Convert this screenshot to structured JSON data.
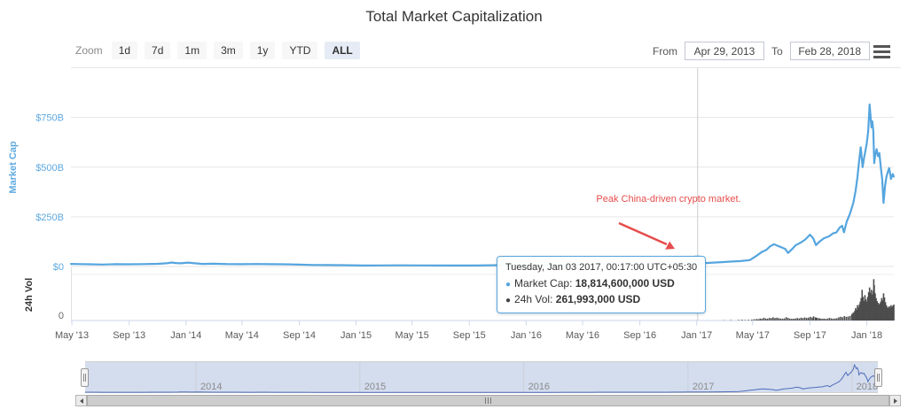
{
  "header": {
    "title": "Total Market Capitalization"
  },
  "toolbar": {
    "zoom_label": "Zoom",
    "zoom_buttons": [
      {
        "label": "1d",
        "selected": false
      },
      {
        "label": "7d",
        "selected": false
      },
      {
        "label": "1m",
        "selected": false
      },
      {
        "label": "3m",
        "selected": false
      },
      {
        "label": "1y",
        "selected": false
      },
      {
        "label": "YTD",
        "selected": false
      },
      {
        "label": "ALL",
        "selected": true
      }
    ],
    "from_label": "From",
    "from_value": "Apr 29, 2013",
    "to_label": "To",
    "to_value": "Feb 28, 2018",
    "menu_icon": "hamburger-icon"
  },
  "axes": {
    "market_cap_title": "Market Cap",
    "volume_title": "24h Vol"
  },
  "tooltip": {
    "date": "Tuesday, Jan 03 2017, 00:17:00 UTC+05:30",
    "market_cap_label": "Market Cap:",
    "market_cap_value": "18,814,600,000 USD",
    "volume_label": "24h Vol:",
    "volume_value": "261,993,000 USD"
  },
  "annotation": {
    "text": "Peak China-driven crypto market."
  },
  "colors": {
    "market_cap_line": "#55a5df",
    "volume_bar": "#4d4d4d",
    "annotation_red": "#e74c4c",
    "selected_button_bg": "#e6ebf5",
    "navigator_line": "#4f6db8",
    "axis_label_blue": "#5ea9e0",
    "tooltip_vol_bullet": "#434348"
  },
  "chart_data": {
    "type": "line",
    "title": "Total Market Capitalization",
    "x_range": [
      "2013-04-29",
      "2018-02-28"
    ],
    "x_ticks": [
      {
        "date": "2013-05-01",
        "label": "May '13"
      },
      {
        "date": "2013-09-01",
        "label": "Sep '13"
      },
      {
        "date": "2014-01-01",
        "label": "Jan '14"
      },
      {
        "date": "2014-05-01",
        "label": "May '14"
      },
      {
        "date": "2014-09-01",
        "label": "Sep '14"
      },
      {
        "date": "2015-01-01",
        "label": "Jan '15"
      },
      {
        "date": "2015-05-01",
        "label": "May '15"
      },
      {
        "date": "2015-09-01",
        "label": "Sep '15"
      },
      {
        "date": "2016-01-01",
        "label": "Jan '16"
      },
      {
        "date": "2016-05-01",
        "label": "May '16"
      },
      {
        "date": "2016-09-01",
        "label": "Sep '16"
      },
      {
        "date": "2017-01-01",
        "label": "Jan '17"
      },
      {
        "date": "2017-05-01",
        "label": "May '17"
      },
      {
        "date": "2017-09-01",
        "label": "Sep '17"
      },
      {
        "date": "2018-01-01",
        "label": "Jan '18"
      }
    ],
    "market_cap": {
      "name": "Market Cap",
      "unit": "USD billions",
      "ylim": [
        0,
        1000
      ],
      "gridline_values": [
        0,
        250,
        500,
        750,
        1000
      ],
      "ticks": [
        {
          "value": 0,
          "label": "$0"
        },
        {
          "value": 250,
          "label": "$250B"
        },
        {
          "value": 500,
          "label": "$500B"
        },
        {
          "value": 750,
          "label": "$750B"
        }
      ],
      "points": [
        [
          "2013-04-29",
          13
        ],
        [
          "2013-05-20",
          12
        ],
        [
          "2013-06-10",
          11
        ],
        [
          "2013-07-05",
          10
        ],
        [
          "2013-08-01",
          11.5
        ],
        [
          "2013-09-01",
          11
        ],
        [
          "2013-10-01",
          12
        ],
        [
          "2013-11-01",
          13.5
        ],
        [
          "2013-11-20",
          16
        ],
        [
          "2013-12-01",
          20
        ],
        [
          "2013-12-10",
          17.5
        ],
        [
          "2013-12-20",
          16
        ],
        [
          "2014-01-06",
          19.5
        ],
        [
          "2014-01-20",
          16
        ],
        [
          "2014-02-05",
          13
        ],
        [
          "2014-03-01",
          14
        ],
        [
          "2014-04-01",
          12
        ],
        [
          "2014-05-01",
          11.5
        ],
        [
          "2014-06-01",
          12.5
        ],
        [
          "2014-07-01",
          11.5
        ],
        [
          "2014-08-01",
          11
        ],
        [
          "2014-09-01",
          9.5
        ],
        [
          "2014-10-01",
          7.5
        ],
        [
          "2014-11-01",
          7
        ],
        [
          "2014-12-01",
          6.5
        ],
        [
          "2015-01-15",
          4.8
        ],
        [
          "2015-02-15",
          5.5
        ],
        [
          "2015-04-01",
          5.8
        ],
        [
          "2015-06-01",
          5.3
        ],
        [
          "2015-08-01",
          5
        ],
        [
          "2015-09-15",
          4.7
        ],
        [
          "2015-11-05",
          6.8
        ],
        [
          "2015-12-15",
          7
        ],
        [
          "2016-01-15",
          7.2
        ],
        [
          "2016-03-01",
          8.5
        ],
        [
          "2016-04-15",
          9.2
        ],
        [
          "2016-05-30",
          10.5
        ],
        [
          "2016-06-18",
          14
        ],
        [
          "2016-07-15",
          12.8
        ],
        [
          "2016-08-15",
          12.2
        ],
        [
          "2016-09-15",
          12.6
        ],
        [
          "2016-10-15",
          13
        ],
        [
          "2016-11-15",
          13.8
        ],
        [
          "2016-12-15",
          15.5
        ],
        [
          "2017-01-03",
          18.8146
        ],
        [
          "2017-01-20",
          17.5
        ],
        [
          "2017-02-15",
          20.5
        ],
        [
          "2017-03-10",
          24
        ],
        [
          "2017-04-05",
          27
        ],
        [
          "2017-04-25",
          32
        ],
        [
          "2017-05-10",
          55
        ],
        [
          "2017-05-22",
          75
        ],
        [
          "2017-05-30",
          83
        ],
        [
          "2017-06-08",
          102
        ],
        [
          "2017-06-16",
          112
        ],
        [
          "2017-06-24",
          104
        ],
        [
          "2017-07-02",
          96
        ],
        [
          "2017-07-10",
          88
        ],
        [
          "2017-07-16",
          68
        ],
        [
          "2017-07-24",
          86
        ],
        [
          "2017-08-02",
          108
        ],
        [
          "2017-08-12",
          120
        ],
        [
          "2017-08-22",
          136
        ],
        [
          "2017-09-01",
          160
        ],
        [
          "2017-09-08",
          142
        ],
        [
          "2017-09-14",
          108
        ],
        [
          "2017-09-22",
          126
        ],
        [
          "2017-10-01",
          142
        ],
        [
          "2017-10-12",
          152
        ],
        [
          "2017-10-20",
          166
        ],
        [
          "2017-10-28",
          172
        ],
        [
          "2017-11-04",
          196
        ],
        [
          "2017-11-09",
          205
        ],
        [
          "2017-11-13",
          172
        ],
        [
          "2017-11-19",
          226
        ],
        [
          "2017-11-26",
          266
        ],
        [
          "2017-12-03",
          320
        ],
        [
          "2017-12-08",
          380
        ],
        [
          "2017-12-12",
          450
        ],
        [
          "2017-12-16",
          540
        ],
        [
          "2017-12-19",
          600
        ],
        [
          "2017-12-23",
          500
        ],
        [
          "2017-12-26",
          545
        ],
        [
          "2017-12-29",
          580
        ],
        [
          "2018-01-01",
          620
        ],
        [
          "2018-01-04",
          680
        ],
        [
          "2018-01-07",
          815
        ],
        [
          "2018-01-09",
          760
        ],
        [
          "2018-01-11",
          700
        ],
        [
          "2018-01-13",
          730
        ],
        [
          "2018-01-15",
          680
        ],
        [
          "2018-01-17",
          520
        ],
        [
          "2018-01-19",
          560
        ],
        [
          "2018-01-22",
          590
        ],
        [
          "2018-01-25",
          555
        ],
        [
          "2018-01-28",
          570
        ],
        [
          "2018-01-31",
          500
        ],
        [
          "2018-02-03",
          440
        ],
        [
          "2018-02-06",
          320
        ],
        [
          "2018-02-09",
          400
        ],
        [
          "2018-02-12",
          450
        ],
        [
          "2018-02-15",
          475
        ],
        [
          "2018-02-18",
          495
        ],
        [
          "2018-02-20",
          470
        ],
        [
          "2018-02-22",
          440
        ],
        [
          "2018-02-24",
          455
        ],
        [
          "2018-02-26",
          465
        ],
        [
          "2018-02-28",
          452
        ]
      ]
    },
    "volume": {
      "name": "24h Vol",
      "type": "column",
      "unit": "USD billions",
      "ylim": [
        0,
        72
      ],
      "ticks": [
        {
          "value": 0,
          "label": "0"
        }
      ],
      "points": [
        [
          "2016-12-01",
          0.15
        ],
        [
          "2017-01-03",
          0.262
        ],
        [
          "2017-02-01",
          0.3
        ],
        [
          "2017-03-01",
          0.5
        ],
        [
          "2017-03-15",
          0.8
        ],
        [
          "2017-04-01",
          1.0
        ],
        [
          "2017-04-08",
          1.3
        ],
        [
          "2017-04-15",
          0.9
        ],
        [
          "2017-04-22",
          1.1
        ],
        [
          "2017-04-29",
          1.4
        ],
        [
          "2017-05-04",
          2.2
        ],
        [
          "2017-05-09",
          2.6
        ],
        [
          "2017-05-13",
          2.2
        ],
        [
          "2017-05-17",
          3.4
        ],
        [
          "2017-05-21",
          3.0
        ],
        [
          "2017-05-25",
          4.6
        ],
        [
          "2017-05-29",
          3.6
        ],
        [
          "2017-06-02",
          3.2
        ],
        [
          "2017-06-06",
          4.4
        ],
        [
          "2017-06-10",
          4.0
        ],
        [
          "2017-06-14",
          5.4
        ],
        [
          "2017-06-18",
          4.2
        ],
        [
          "2017-06-22",
          4.8
        ],
        [
          "2017-06-26",
          4.0
        ],
        [
          "2017-06-30",
          3.4
        ],
        [
          "2017-07-04",
          3.0
        ],
        [
          "2017-07-08",
          3.6
        ],
        [
          "2017-07-12",
          5.6
        ],
        [
          "2017-07-16",
          4.4
        ],
        [
          "2017-07-20",
          3.2
        ],
        [
          "2017-07-24",
          2.8
        ],
        [
          "2017-07-28",
          3.0
        ],
        [
          "2017-08-01",
          3.4
        ],
        [
          "2017-08-05",
          4.2
        ],
        [
          "2017-08-09",
          3.6
        ],
        [
          "2017-08-13",
          4.8
        ],
        [
          "2017-08-17",
          4.2
        ],
        [
          "2017-08-21",
          5.2
        ],
        [
          "2017-08-25",
          4.4
        ],
        [
          "2017-08-29",
          5.0
        ],
        [
          "2017-09-02",
          6.2
        ],
        [
          "2017-09-06",
          5.0
        ],
        [
          "2017-09-09",
          7.0
        ],
        [
          "2017-09-13",
          5.4
        ],
        [
          "2017-09-16",
          4.6
        ],
        [
          "2017-09-20",
          4.0
        ],
        [
          "2017-09-23",
          3.4
        ],
        [
          "2017-09-27",
          3.0
        ],
        [
          "2017-10-01",
          3.2
        ],
        [
          "2017-10-05",
          2.8
        ],
        [
          "2017-10-09",
          3.4
        ],
        [
          "2017-10-13",
          4.4
        ],
        [
          "2017-10-17",
          3.6
        ],
        [
          "2017-10-21",
          3.0
        ],
        [
          "2017-10-25",
          3.4
        ],
        [
          "2017-10-29",
          3.8
        ],
        [
          "2017-11-02",
          5.4
        ],
        [
          "2017-11-06",
          6.4
        ],
        [
          "2017-11-10",
          5.6
        ],
        [
          "2017-11-14",
          7.6
        ],
        [
          "2017-11-18",
          6.2
        ],
        [
          "2017-11-22",
          6.8
        ],
        [
          "2017-11-26",
          7.8
        ],
        [
          "2017-11-30",
          11
        ],
        [
          "2017-12-03",
          13.5
        ],
        [
          "2017-12-06",
          16
        ],
        [
          "2017-12-08",
          21
        ],
        [
          "2017-12-10",
          18
        ],
        [
          "2017-12-12",
          26
        ],
        [
          "2017-12-14",
          22
        ],
        [
          "2017-12-16",
          27
        ],
        [
          "2017-12-18",
          32
        ],
        [
          "2017-12-20",
          38
        ],
        [
          "2017-12-22",
          52
        ],
        [
          "2017-12-24",
          40
        ],
        [
          "2017-12-26",
          33
        ],
        [
          "2017-12-28",
          43
        ],
        [
          "2017-12-30",
          36
        ],
        [
          "2018-01-01",
          32
        ],
        [
          "2018-01-03",
          40
        ],
        [
          "2018-01-05",
          48
        ],
        [
          "2018-01-07",
          56
        ],
        [
          "2018-01-09",
          47
        ],
        [
          "2018-01-11",
          52
        ],
        [
          "2018-01-13",
          44
        ],
        [
          "2018-01-15",
          50
        ],
        [
          "2018-01-16",
          70
        ],
        [
          "2018-01-17",
          60
        ],
        [
          "2018-01-19",
          46
        ],
        [
          "2018-01-21",
          38
        ],
        [
          "2018-01-23",
          33
        ],
        [
          "2018-01-25",
          30
        ],
        [
          "2018-01-27",
          27
        ],
        [
          "2018-01-29",
          29
        ],
        [
          "2018-01-31",
          32
        ],
        [
          "2018-02-02",
          38
        ],
        [
          "2018-02-04",
          34
        ],
        [
          "2018-02-06",
          46
        ],
        [
          "2018-02-08",
          39
        ],
        [
          "2018-02-10",
          31
        ],
        [
          "2018-02-12",
          26
        ],
        [
          "2018-02-14",
          23
        ],
        [
          "2018-02-16",
          21
        ],
        [
          "2018-02-18",
          24
        ],
        [
          "2018-02-20",
          22
        ],
        [
          "2018-02-22",
          26
        ],
        [
          "2018-02-24",
          23
        ],
        [
          "2018-02-26",
          25
        ],
        [
          "2018-02-28",
          27
        ]
      ]
    },
    "navigator": {
      "ylim": [
        0,
        830
      ],
      "years": [
        {
          "date": "2014-01-01",
          "label": "2014"
        },
        {
          "date": "2015-01-01",
          "label": "2015"
        },
        {
          "date": "2016-01-01",
          "label": "2016"
        },
        {
          "date": "2017-01-01",
          "label": "2017"
        },
        {
          "date": "2018-01-01",
          "label": "2018"
        }
      ]
    },
    "selected_point": {
      "date": "2017-01-03",
      "market_cap_billion": 18.8146,
      "volume_billion": 0.262
    }
  }
}
